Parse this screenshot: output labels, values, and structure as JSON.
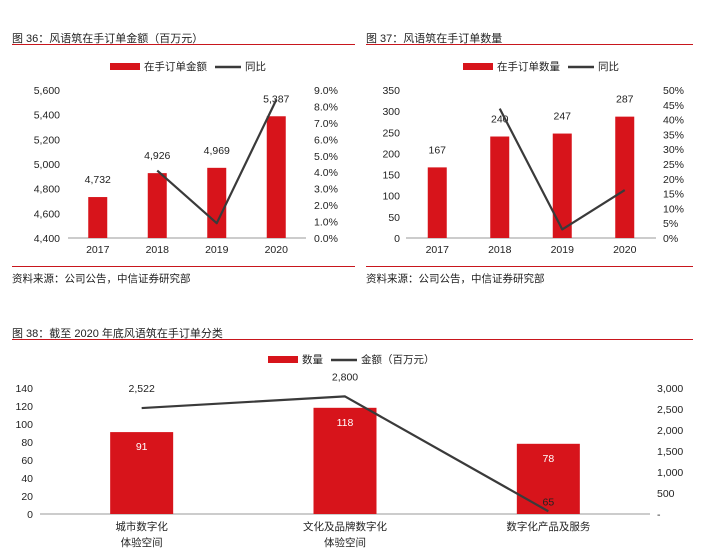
{
  "fig36": {
    "title": "图 36：风语筑在手订单金额（百万元）",
    "source": "资料来源：公司公告，中信证券研究部"
  },
  "fig37": {
    "title": "图 37：风语筑在手订单数量",
    "source": "资料来源：公司公告，中信证券研究部"
  },
  "fig38": {
    "title": "图 38：截至 2020 年底风语筑在手订单分类"
  },
  "colors": {
    "bar": "#d7141b",
    "line": "#3a3a3a",
    "rule": "#c8161d"
  },
  "chart_data": [
    {
      "id": "fig36",
      "type": "bar",
      "categories": [
        "2017",
        "2018",
        "2019",
        "2020"
      ],
      "series": [
        {
          "name": "在手订单金额",
          "type": "bar",
          "axis": "left",
          "values": [
            4732,
            4926,
            4969,
            5387
          ],
          "labels": [
            "4,732",
            "4,926",
            "4,969",
            "5,387"
          ]
        },
        {
          "name": "同比",
          "type": "line",
          "axis": "right",
          "points": [
            [
              1,
              4.1
            ],
            [
              2,
              0.9
            ],
            [
              3,
              8.4
            ]
          ]
        }
      ],
      "ylim": [
        4400,
        5600
      ],
      "yticks": [
        "4,400",
        "4,600",
        "4,800",
        "5,000",
        "5,200",
        "5,400",
        "5,600"
      ],
      "y2lim": [
        0,
        9
      ],
      "y2ticks": [
        "0.0%",
        "1.0%",
        "2.0%",
        "3.0%",
        "4.0%",
        "5.0%",
        "6.0%",
        "7.0%",
        "8.0%",
        "9.0%"
      ],
      "legend": "top"
    },
    {
      "id": "fig37",
      "type": "bar",
      "categories": [
        "2017",
        "2018",
        "2019",
        "2020"
      ],
      "series": [
        {
          "name": "在手订单数量",
          "type": "bar",
          "axis": "left",
          "values": [
            167,
            240,
            247,
            287
          ],
          "labels": [
            "167",
            "240",
            "247",
            "287"
          ]
        },
        {
          "name": "同比",
          "type": "line",
          "axis": "right",
          "points": [
            [
              1,
              43.7
            ],
            [
              2,
              2.9
            ],
            [
              3,
              16.2
            ]
          ]
        }
      ],
      "ylim": [
        0,
        350
      ],
      "yticks": [
        "0",
        "50",
        "100",
        "150",
        "200",
        "250",
        "300",
        "350"
      ],
      "y2lim": [
        0,
        50
      ],
      "y2ticks": [
        "0%",
        "5%",
        "10%",
        "15%",
        "20%",
        "25%",
        "30%",
        "35%",
        "40%",
        "45%",
        "50%"
      ],
      "legend": "top"
    },
    {
      "id": "fig38",
      "type": "bar",
      "categories": [
        [
          "城市数字化",
          "体验空间"
        ],
        [
          "文化及品牌数字化",
          "体验空间"
        ],
        [
          "数字化产品及服务"
        ]
      ],
      "series": [
        {
          "name": "数量",
          "type": "bar",
          "axis": "left",
          "values": [
            91,
            118,
            78
          ],
          "labels": [
            "91",
            "118",
            "78"
          ]
        },
        {
          "name": "金额（百万元）",
          "type": "line",
          "axis": "right",
          "points": [
            [
              0,
              2522
            ],
            [
              1,
              2800
            ],
            [
              2,
              65
            ]
          ],
          "labels": [
            "2,522",
            "2,800",
            "65"
          ]
        }
      ],
      "ylim": [
        0,
        140
      ],
      "yticks": [
        "0",
        "20",
        "40",
        "60",
        "80",
        "100",
        "120",
        "140"
      ],
      "y2lim": [
        0,
        3000
      ],
      "y2ticks": [
        "-",
        "500",
        "1,000",
        "1,500",
        "2,000",
        "2,500",
        "3,000"
      ],
      "legend": "top"
    }
  ]
}
